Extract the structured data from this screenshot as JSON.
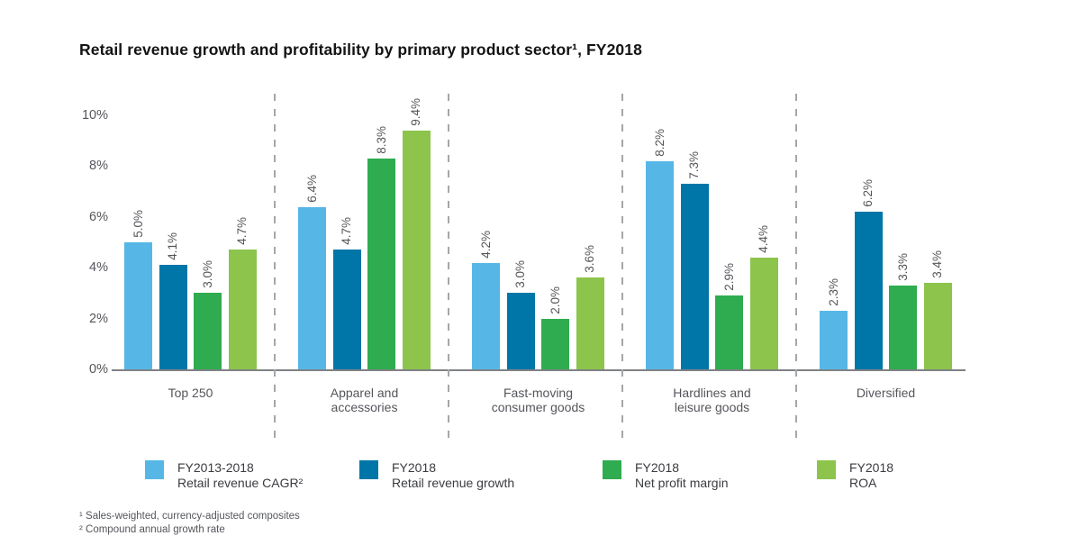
{
  "title": "Retail revenue growth and profitability by primary product sector¹, FY2018",
  "chart_data": {
    "type": "bar",
    "title": "Retail revenue growth and profitability by primary product sector¹, FY2018",
    "categories": [
      "Top 250",
      "Apparel and accessories",
      "Fast-moving consumer goods",
      "Hardlines and leisure goods",
      "Diversified"
    ],
    "series": [
      {
        "name": "FY2013-2018 Retail revenue CAGR²",
        "legend_lines": [
          "FY2013-2018",
          "Retail revenue CAGR²"
        ],
        "color": "#56B7E6",
        "values": [
          5.0,
          6.4,
          4.2,
          8.2,
          2.3
        ]
      },
      {
        "name": "FY2018 Retail revenue growth",
        "legend_lines": [
          "FY2018",
          "Retail revenue growth"
        ],
        "color": "#0076A8",
        "values": [
          4.1,
          4.7,
          3.0,
          7.3,
          6.2
        ]
      },
      {
        "name": "FY2018 Net profit margin",
        "legend_lines": [
          "FY2018",
          "Net profit margin"
        ],
        "color": "#2EAC4F",
        "values": [
          3.0,
          8.3,
          2.0,
          2.9,
          3.3
        ]
      },
      {
        "name": "FY2018 ROA",
        "legend_lines": [
          "FY2018",
          "ROA"
        ],
        "color": "#8CC44C",
        "values": [
          4.7,
          9.4,
          3.6,
          4.4,
          3.4
        ]
      }
    ],
    "ylim": [
      0,
      10
    ],
    "yticks": [
      0,
      2,
      4,
      6,
      8,
      10
    ],
    "ytick_labels": [
      "0%",
      "2%",
      "4%",
      "6%",
      "8%",
      "10%"
    ],
    "value_label_format": "{value}%",
    "value_label_rotation_deg": 90,
    "grid": false,
    "legend_position": "bottom"
  },
  "footnotes": [
    "¹ Sales-weighted, currency-adjusted composites",
    "² Compound annual growth rate"
  ]
}
